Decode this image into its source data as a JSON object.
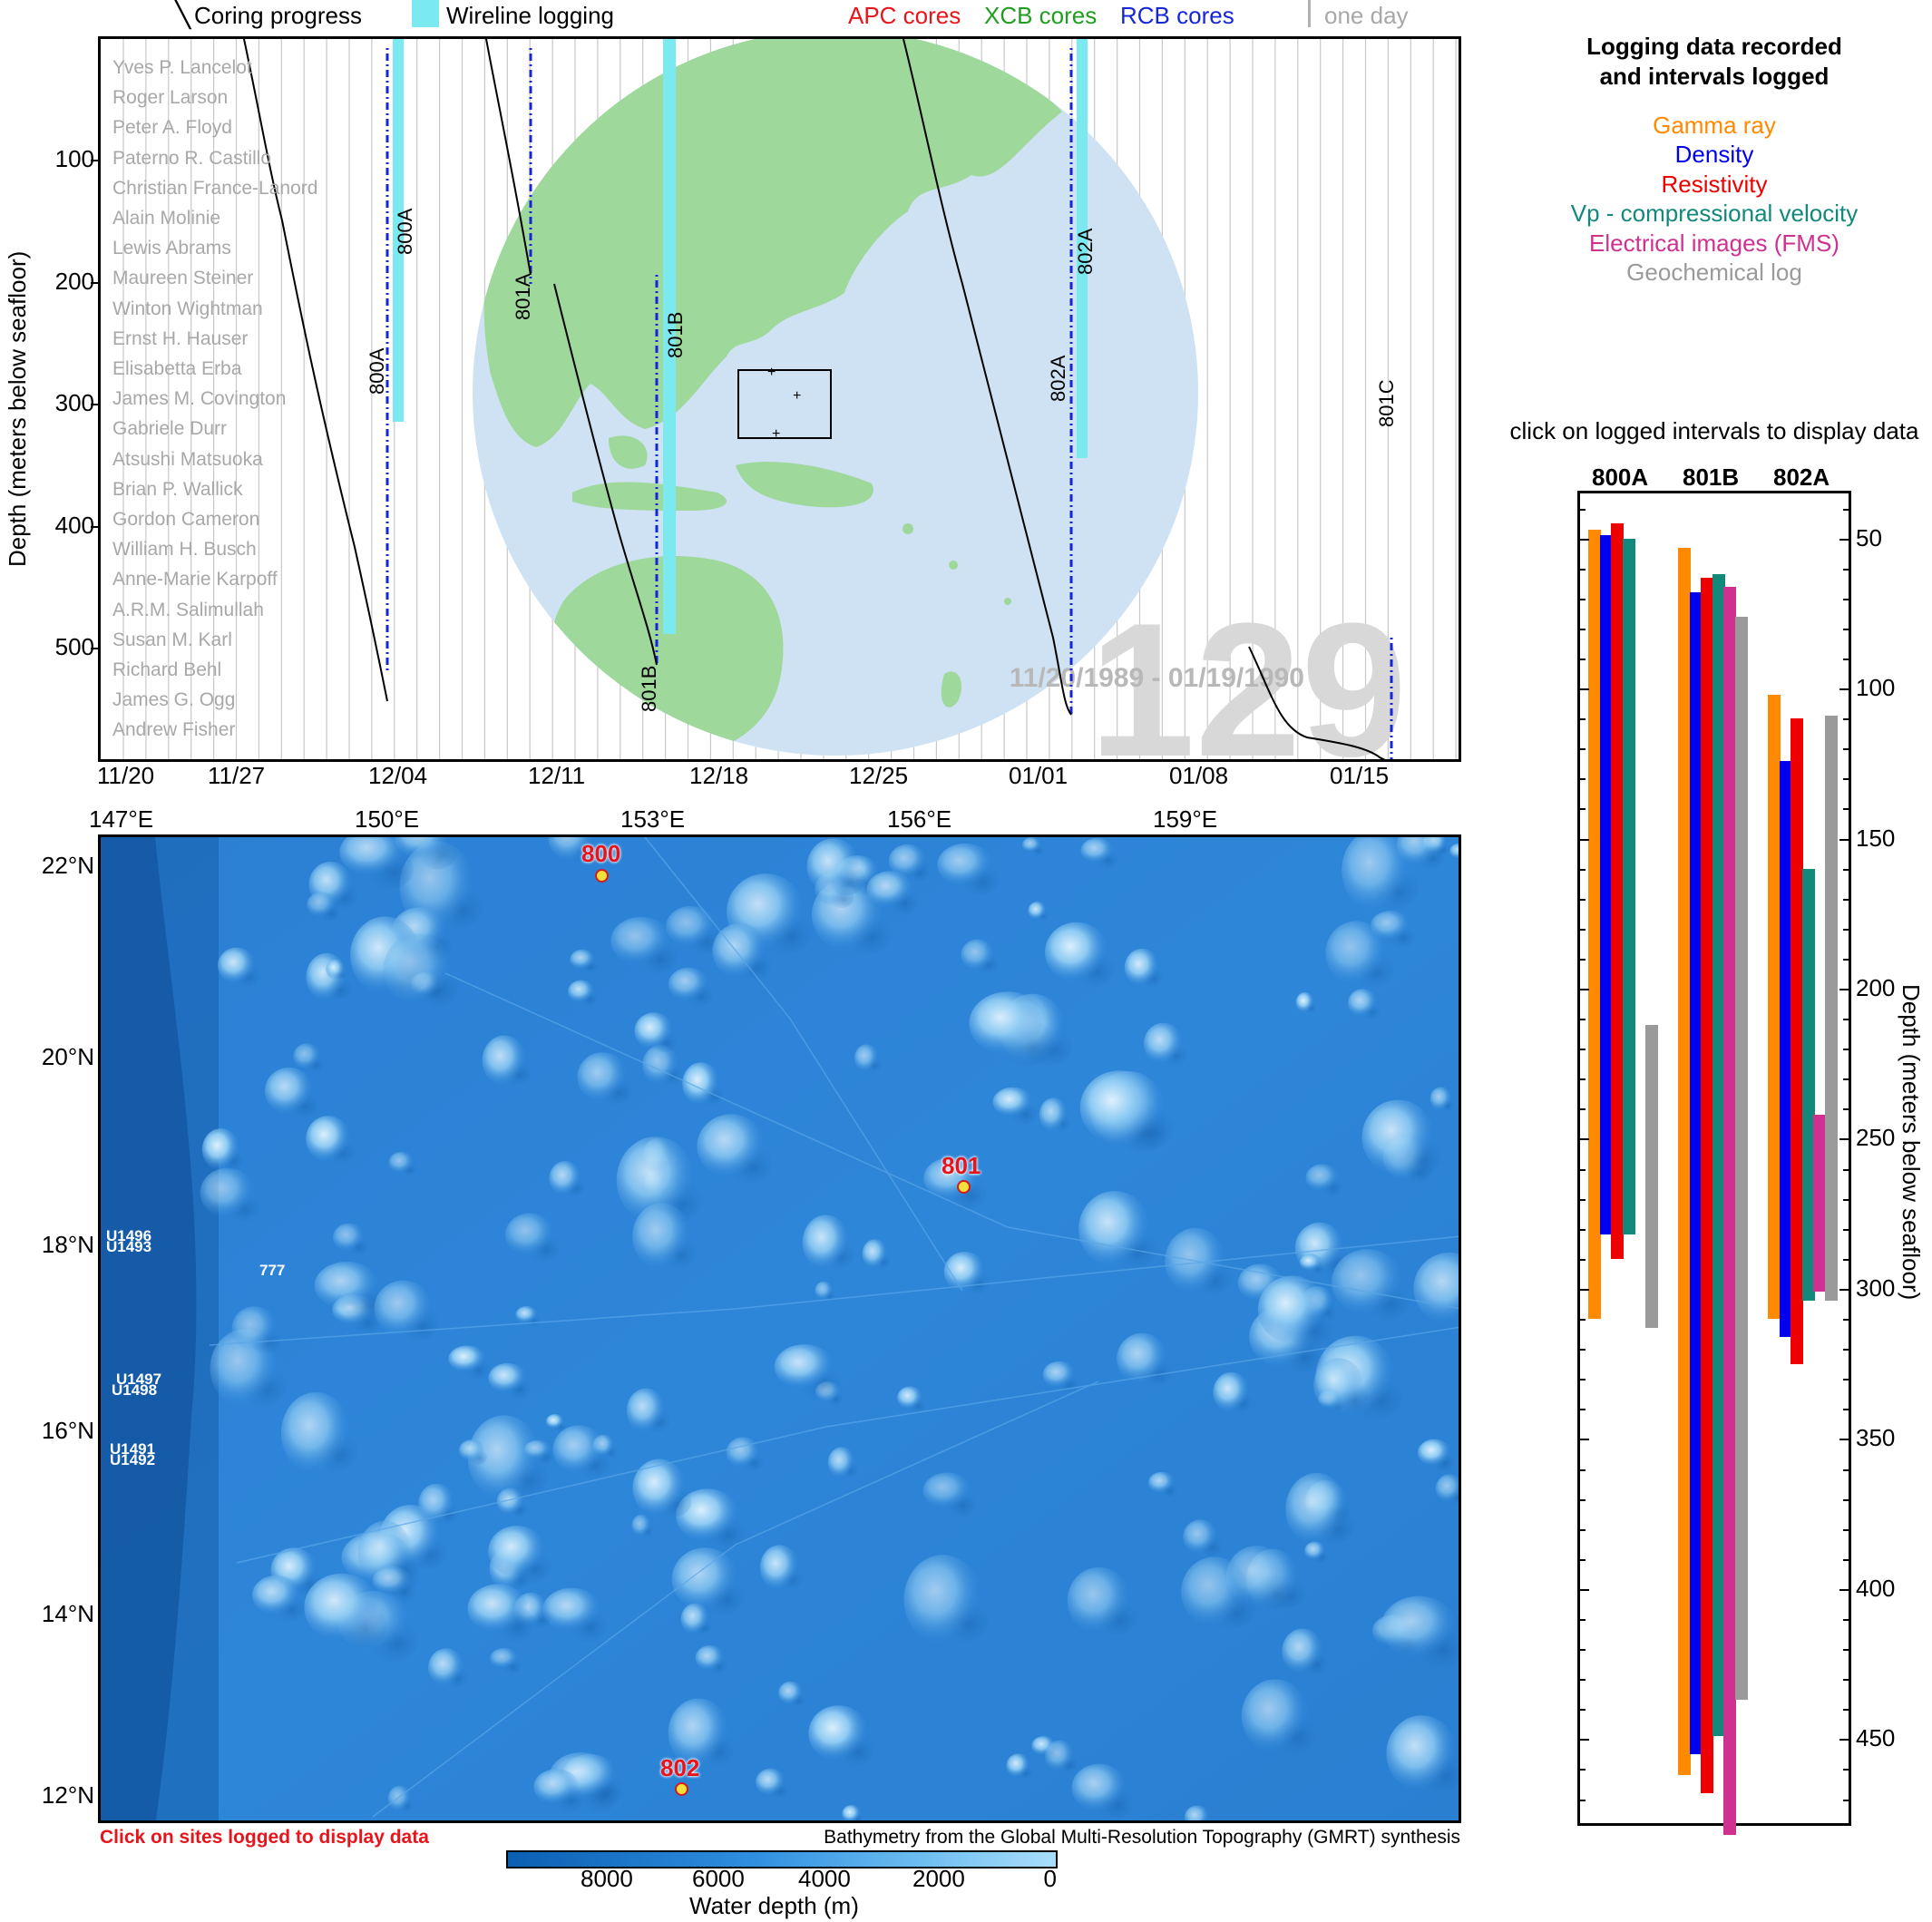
{
  "legend": {
    "coring": "Coring progress",
    "wireline": "Wireline logging",
    "apc": "APC cores",
    "xcb": "XCB cores",
    "rcb": "RCB cores",
    "oneday": "one day",
    "colors": {
      "apc": "#e8141b",
      "xcb": "#1f9e1f",
      "rcb": "#1525d8",
      "wireline": "#7aeaf0",
      "oneday": "#b0b0b0"
    }
  },
  "timeline": {
    "expedition": "129",
    "dates": "11/20/1989 - 01/19/1990",
    "y_axis_label": "Depth (meters below seafloor)",
    "y_ticks": [
      "100",
      "200",
      "300",
      "400",
      "500"
    ],
    "x_ticks": [
      "11/20",
      "11/27",
      "12/04",
      "12/11",
      "12/18",
      "12/25",
      "01/01",
      "01/08",
      "01/15"
    ],
    "holes": [
      {
        "name": "800A",
        "label": "800A"
      },
      {
        "name": "801A",
        "label": "801A"
      },
      {
        "name": "801B",
        "label": "801B"
      },
      {
        "name": "802A",
        "label": "802A"
      },
      {
        "name": "801C",
        "label": "801C"
      }
    ],
    "scientists": [
      "Yves P. Lancelot",
      "Roger Larson",
      "Peter A. Floyd",
      "Paterno R. Castillo",
      "Christian France-Lanord",
      "Alain Molinie",
      "Lewis Abrams",
      "Maureen Steiner",
      "Winton Wightman",
      "Ernst H. Hauser",
      "Elisabetta Erba",
      "James M. Covington",
      "Gabriele Durr",
      "Atsushi Matsuoka",
      "Brian P. Wallick",
      "Gordon Cameron",
      "William H. Busch",
      "Anne-Marie Karpoff",
      "A.R.M. Salimullah",
      "Susan M. Karl",
      "Richard Behl",
      "James G. Ogg",
      "Andrew Fisher"
    ]
  },
  "map": {
    "lon_ticks": [
      "147°E",
      "150°E",
      "153°E",
      "156°E",
      "159°E"
    ],
    "lat_ticks": [
      "22°N",
      "20°N",
      "18°N",
      "16°N",
      "14°N",
      "12°N"
    ],
    "sites_logged": [
      {
        "name": "800",
        "lon": 152.3,
        "lat": 21.9
      },
      {
        "name": "801",
        "lon": 156.4,
        "lat": 18.6
      },
      {
        "name": "802",
        "lon": 153.2,
        "lat": 12.1
      }
    ],
    "other_sites": [
      {
        "name": "U1496"
      },
      {
        "name": "U1493"
      },
      {
        "name": "777"
      },
      {
        "name": "U1497"
      },
      {
        "name": "U1498"
      },
      {
        "name": "U1491"
      },
      {
        "name": "U1492"
      }
    ],
    "click_hint": "Click on sites logged to display data",
    "credit": "Bathymetry from the Global Multi-Resolution Topography (GMRT) synthesis",
    "colorbar_ticks": [
      "8000",
      "6000",
      "4000",
      "2000",
      "0"
    ],
    "colorbar_label": "Water depth (m)"
  },
  "right_panel": {
    "title_line1": "Logging data recorded",
    "title_line2": "and intervals logged",
    "log_types": [
      {
        "label": "Gamma ray",
        "color": "#ff8a00"
      },
      {
        "label": "Density",
        "color": "#0000ee"
      },
      {
        "label": "Resistivity",
        "color": "#ee0000"
      },
      {
        "label": "Vp - compressional velocity",
        "color": "#12897a"
      },
      {
        "label": "Electrical images (FMS)",
        "color": "#d0308f"
      },
      {
        "label": "Geochemical log",
        "color": "#9a9a9a"
      }
    ],
    "click_hint": "click on logged intervals to display data",
    "holes": [
      "800A",
      "801B",
      "802A"
    ],
    "depth_ticks": [
      "50",
      "100",
      "150",
      "200",
      "250",
      "300",
      "350",
      "400",
      "450"
    ],
    "y_axis_label": "Depth (meters below seafloor)",
    "intervals": {
      "800A": [
        [
          47,
          310
        ],
        [
          49,
          282
        ],
        [
          45,
          290
        ],
        [
          50,
          282
        ],
        null,
        [
          212,
          313
        ]
      ],
      "801B": [
        [
          53,
          462
        ],
        [
          68,
          455
        ],
        [
          63,
          468
        ],
        [
          62,
          449
        ],
        [
          66,
          482
        ],
        [
          76,
          437
        ]
      ],
      "802A": [
        [
          102,
          310
        ],
        [
          124,
          316
        ],
        [
          110,
          325
        ],
        [
          160,
          304
        ],
        [
          242,
          301
        ],
        [
          109,
          304
        ]
      ]
    },
    "depth_range": [
      35,
      478
    ]
  }
}
